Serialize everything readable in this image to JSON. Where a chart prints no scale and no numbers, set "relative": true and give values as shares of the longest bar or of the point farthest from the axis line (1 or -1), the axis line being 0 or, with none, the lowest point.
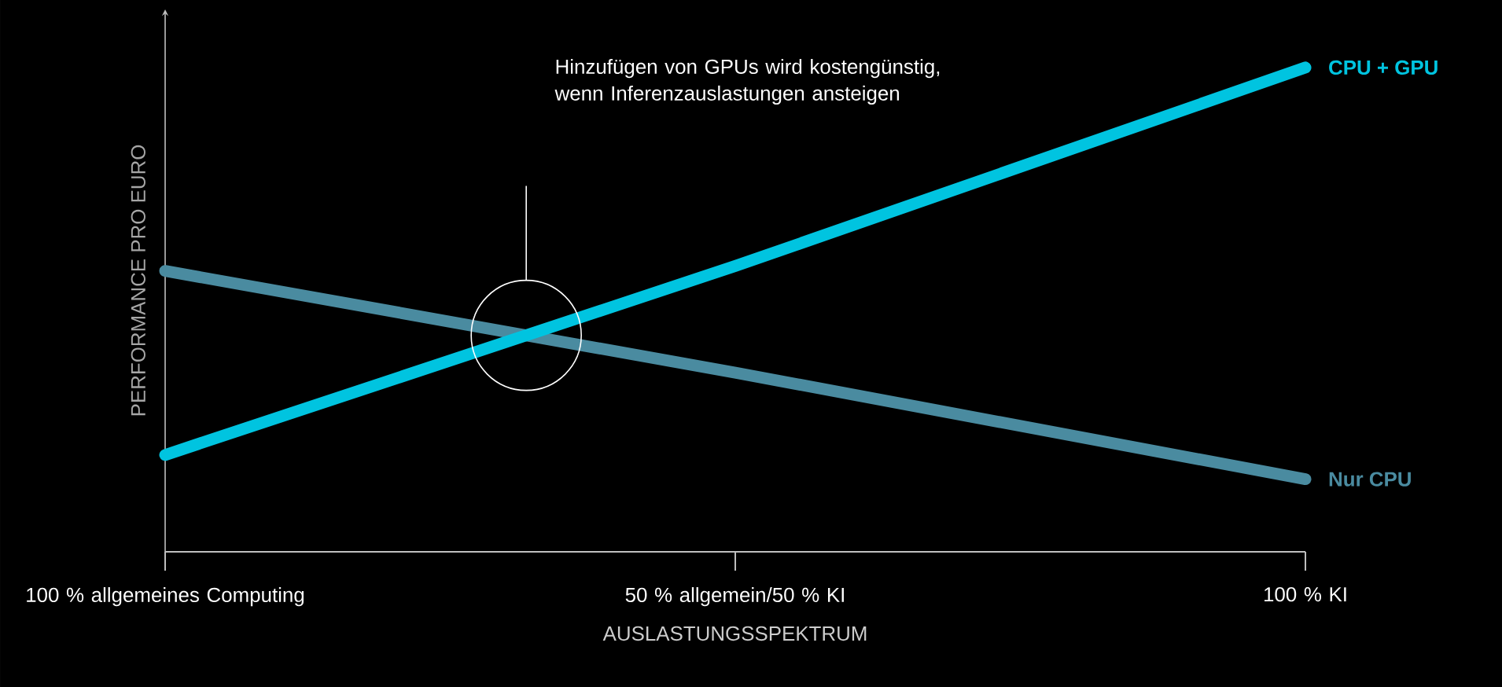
{
  "chart_data": {
    "type": "line",
    "relative": true,
    "xlabel": "AUSLASTUNGSSPEKTRUM",
    "ylabel": "PERFORMANCE PRO EURO",
    "categories": [
      "100 % allgemeines Computing",
      "50 % allgemein/50 % KI",
      "100 % KI"
    ],
    "series": [
      {
        "name": "Nur CPU",
        "color": "#4a8ba0",
        "values": [
          0.58,
          0.37,
          0.15
        ]
      },
      {
        "name": "CPU + GPU",
        "color": "#00c4e0",
        "values": [
          0.2,
          0.59,
          1
        ]
      }
    ],
    "annotations": [
      "Hinzufügen von GPUs wird kostengünstig, wenn Inferenzauslastungen ansteigen"
    ]
  }
}
